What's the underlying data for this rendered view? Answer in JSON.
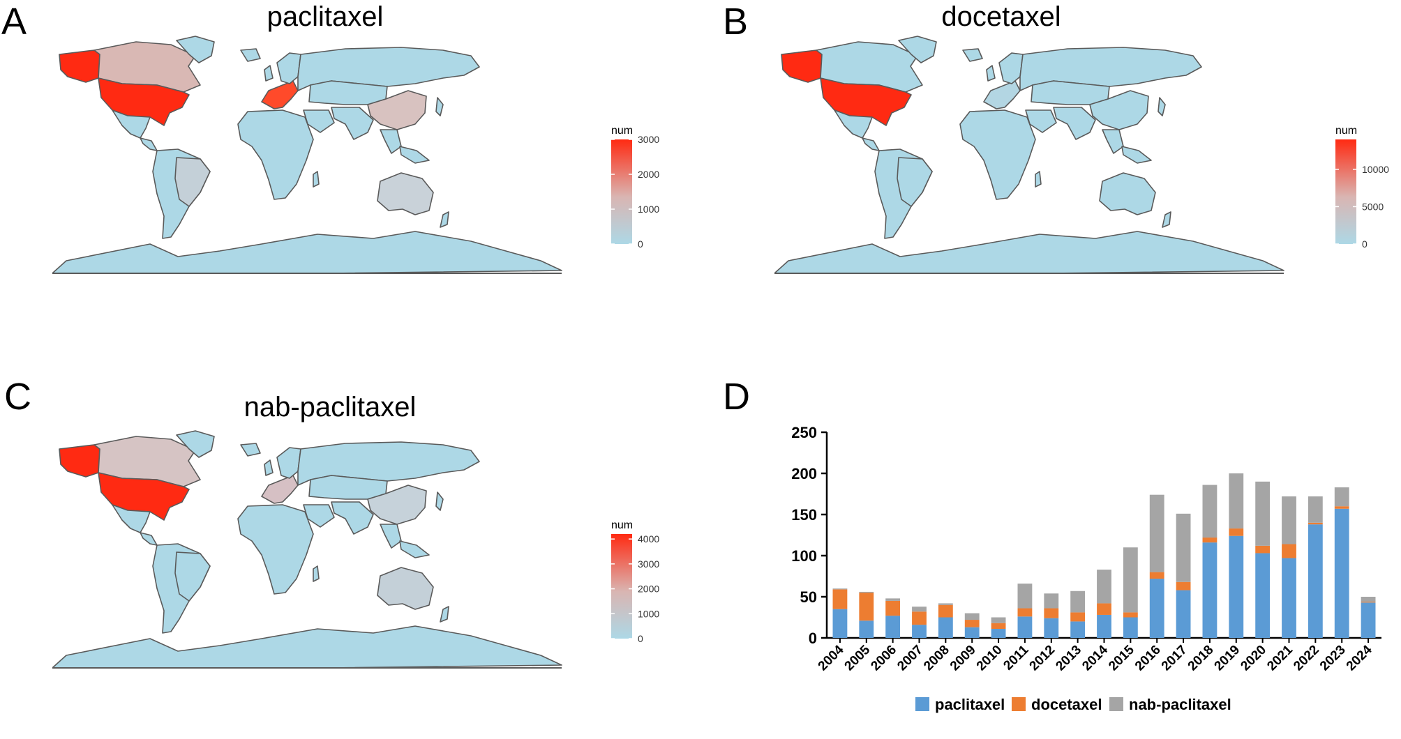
{
  "panels": {
    "a": {
      "letter": "A",
      "title": "paclitaxel",
      "legend_title": "num",
      "ticks": [
        "3000",
        "2000",
        "1000",
        "0"
      ],
      "max": 3000,
      "colors": {
        "usa": "#ff2a12",
        "alaska": "#ff2a12",
        "canada": "#d9b8b4",
        "europe": "#ff4a2a",
        "china": "#d8c2c0",
        "russia": "#add8e6",
        "other": "#add8e6",
        "australia": "#c9d2d9",
        "brazil": "#c4d0d8"
      }
    },
    "b": {
      "letter": "B",
      "title": "docetaxel",
      "legend_title": "num",
      "ticks": [
        "10000",
        "5000",
        "0"
      ],
      "max": 14000,
      "colors": {
        "usa": "#ff2a12",
        "alaska": "#ff2a12",
        "canada": "#add8e6",
        "europe": "#b3d6e3",
        "china": "#add8e6",
        "russia": "#add8e6",
        "other": "#add8e6",
        "australia": "#add8e6",
        "brazil": "#add8e6"
      }
    },
    "c": {
      "letter": "C",
      "title": "nab-paclitaxel",
      "legend_title": "num",
      "ticks": [
        "4000",
        "3000",
        "2000",
        "1000",
        "0"
      ],
      "max": 4200,
      "colors": {
        "usa": "#ff2a12",
        "alaska": "#ff2a12",
        "canada": "#d6c4c4",
        "europe": "#d6c0c4",
        "china": "#c6d2da",
        "russia": "#add8e6",
        "other": "#add8e6",
        "australia": "#c4d0d8",
        "brazil": "#add8e6"
      }
    },
    "d": {
      "letter": "D"
    }
  },
  "chart_data": {
    "type": "bar",
    "stacked": true,
    "categories": [
      "2004",
      "2005",
      "2006",
      "2007",
      "2008",
      "2009",
      "2010",
      "2011",
      "2012",
      "2013",
      "2014",
      "2015",
      "2016",
      "2017",
      "2018",
      "2019",
      "2020",
      "2021",
      "2022",
      "2023",
      "2024"
    ],
    "series": [
      {
        "name": "paclitaxel",
        "color": "#5b9bd5",
        "values": [
          35,
          21,
          27,
          16,
          25,
          13,
          11,
          26,
          24,
          20,
          28,
          25,
          72,
          58,
          116,
          124,
          103,
          97,
          138,
          157,
          43
        ]
      },
      {
        "name": "docetaxel",
        "color": "#ed7d31",
        "values": [
          24,
          34,
          18,
          16,
          15,
          9,
          7,
          10,
          12,
          11,
          14,
          6,
          8,
          10,
          6,
          9,
          9,
          17,
          2,
          3,
          1
        ]
      },
      {
        "name": "nab-paclitaxel",
        "color": "#a5a5a5",
        "values": [
          1,
          1,
          3,
          6,
          2,
          8,
          7,
          30,
          18,
          26,
          41,
          79,
          94,
          83,
          64,
          67,
          78,
          58,
          32,
          23,
          6
        ]
      }
    ],
    "ylim": [
      0,
      250
    ],
    "yticks": [
      "0",
      "50",
      "100",
      "150",
      "200",
      "250"
    ],
    "legend_position": "bottom"
  }
}
